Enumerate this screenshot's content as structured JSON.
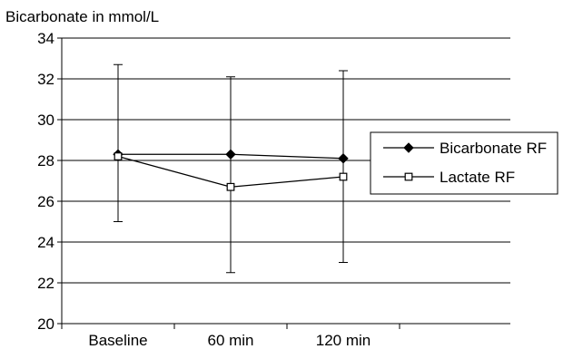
{
  "chart_data": {
    "type": "line",
    "title": "",
    "ylabel": "Bicarbonate in mmol/L",
    "xlabel": "",
    "categories": [
      "Baseline",
      "60 min",
      "120 min"
    ],
    "ylim": [
      20,
      34
    ],
    "yticks": [
      20,
      22,
      24,
      26,
      28,
      30,
      32,
      34
    ],
    "grid": "horizontal",
    "legend_position": "right",
    "series": [
      {
        "name": "Bicarbonate RF",
        "marker": "filled-diamond",
        "color": "#000000",
        "values": [
          28.3,
          28.3,
          28.1
        ],
        "error_low": [
          25.0,
          22.5,
          23.0
        ],
        "error_high": [
          32.7,
          32.1,
          32.4
        ]
      },
      {
        "name": "Lactate RF",
        "marker": "open-square",
        "color": "#000000",
        "values": [
          28.2,
          26.7,
          27.2
        ]
      }
    ]
  }
}
